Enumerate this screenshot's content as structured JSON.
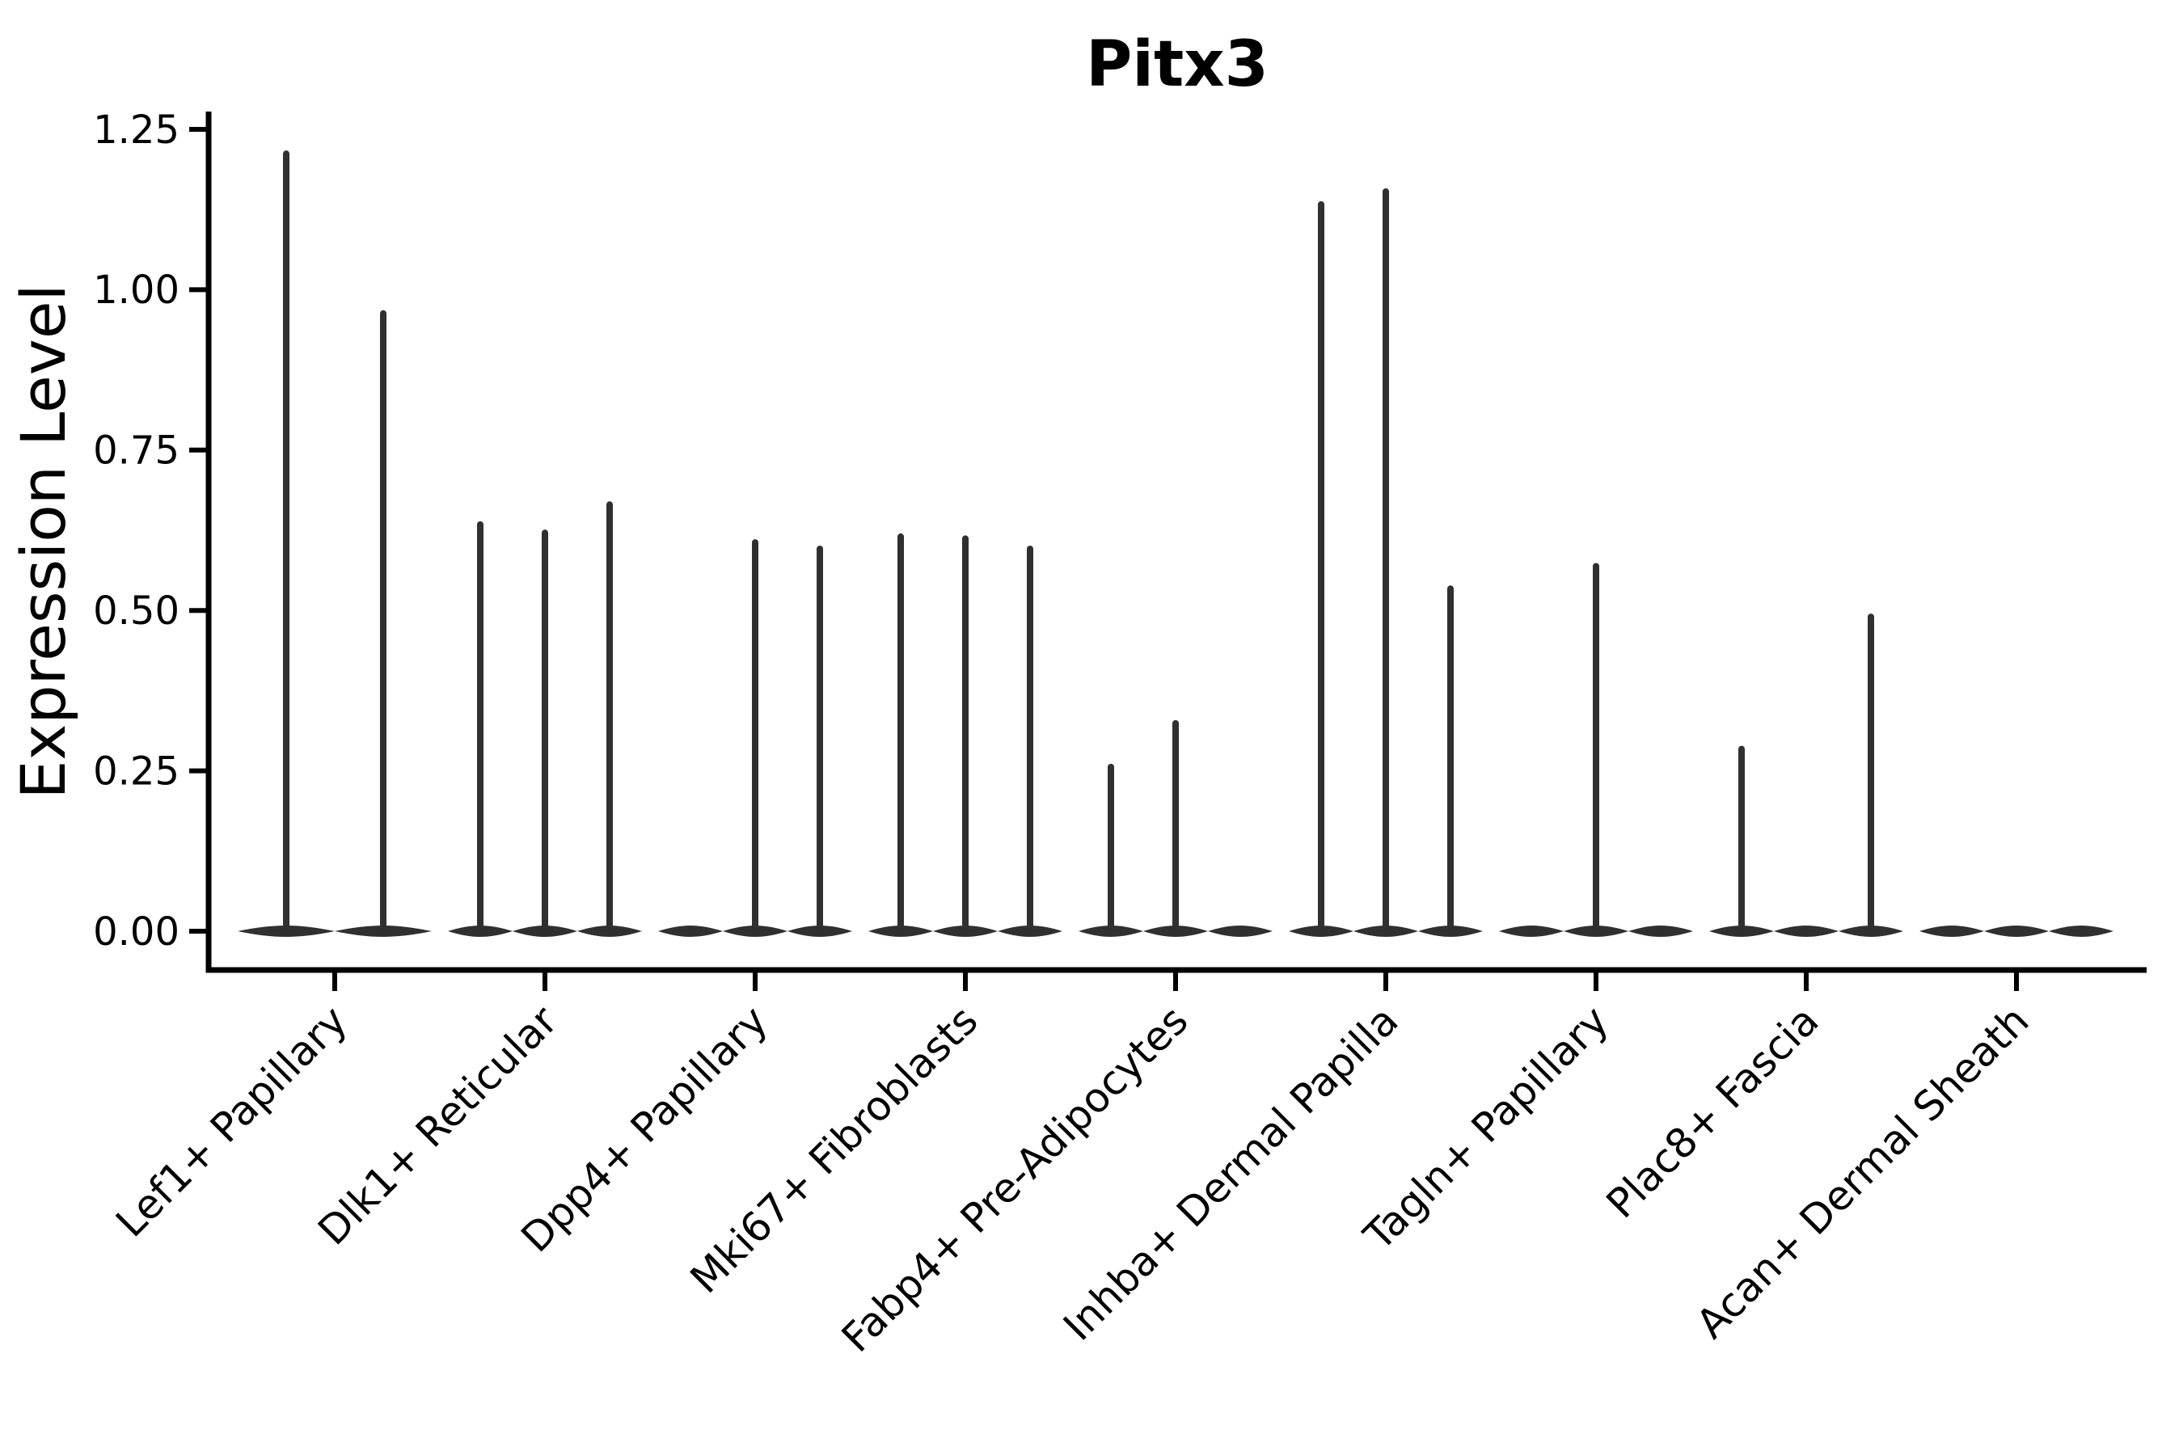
{
  "title": "Pitx3",
  "chart_data": {
    "type": "violin",
    "title": "Pitx3",
    "xlabel": "",
    "ylabel": "Expression Level",
    "ylim": [
      0,
      1.3
    ],
    "yticks": [
      0,
      0.25,
      0.5,
      0.75,
      1.0,
      1.25
    ],
    "ytick_labels": [
      "0.00",
      "0.25",
      "0.50",
      "0.75",
      "1.00",
      "1.25"
    ],
    "grid": false,
    "legend_position": "none",
    "violin_color": "#303030",
    "axis_color": "#000000",
    "categories": [
      "Lef1+ Papillary",
      "Dlk1+ Reticular",
      "Dpp4+ Papillary",
      "Mki67+ Fibroblasts",
      "Fabp4+ Pre-Adipocytes",
      "Inhba+ Dermal Papilla",
      "Tagln+ Papillary",
      "Plac8+ Fascia",
      "Acan+ Dermal Sheath"
    ],
    "groups": [
      {
        "category": "Lef1+ Papillary",
        "n_violins": 2,
        "spikes": [
          {
            "slot": 0,
            "max": 1.212
          },
          {
            "slot": 1,
            "max": 0.963
          }
        ]
      },
      {
        "category": "Dlk1+ Reticular",
        "n_violins": 3,
        "spikes": [
          {
            "slot": 0,
            "max": 0.634
          },
          {
            "slot": 1,
            "max": 0.621
          },
          {
            "slot": 2,
            "max": 0.665
          }
        ]
      },
      {
        "category": "Dpp4+ Papillary",
        "n_violins": 3,
        "spikes": [
          {
            "slot": 1,
            "max": 0.606
          },
          {
            "slot": 2,
            "max": 0.596
          }
        ]
      },
      {
        "category": "Mki67+ Fibroblasts",
        "n_violins": 3,
        "spikes": [
          {
            "slot": 0,
            "max": 0.615
          },
          {
            "slot": 1,
            "max": 0.612
          },
          {
            "slot": 2,
            "max": 0.596
          }
        ]
      },
      {
        "category": "Fabp4+ Pre-Adipocytes",
        "n_violins": 3,
        "spikes": [
          {
            "slot": 0,
            "max": 0.256
          },
          {
            "slot": 1,
            "max": 0.324
          }
        ]
      },
      {
        "category": "Inhba+ Dermal Papilla",
        "n_violins": 3,
        "spikes": [
          {
            "slot": 0,
            "max": 1.133
          },
          {
            "slot": 1,
            "max": 1.153
          },
          {
            "slot": 2,
            "max": 0.534
          }
        ]
      },
      {
        "category": "Tagln+ Papillary",
        "n_violins": 3,
        "spikes": [
          {
            "slot": 1,
            "max": 0.569
          }
        ]
      },
      {
        "category": "Plac8+ Fascia",
        "n_violins": 3,
        "spikes": [
          {
            "slot": 0,
            "max": 0.284
          },
          {
            "slot": 2,
            "max": 0.49
          }
        ]
      },
      {
        "category": "Acan+ Dermal Sheath",
        "n_violins": 3,
        "spikes": []
      }
    ]
  }
}
